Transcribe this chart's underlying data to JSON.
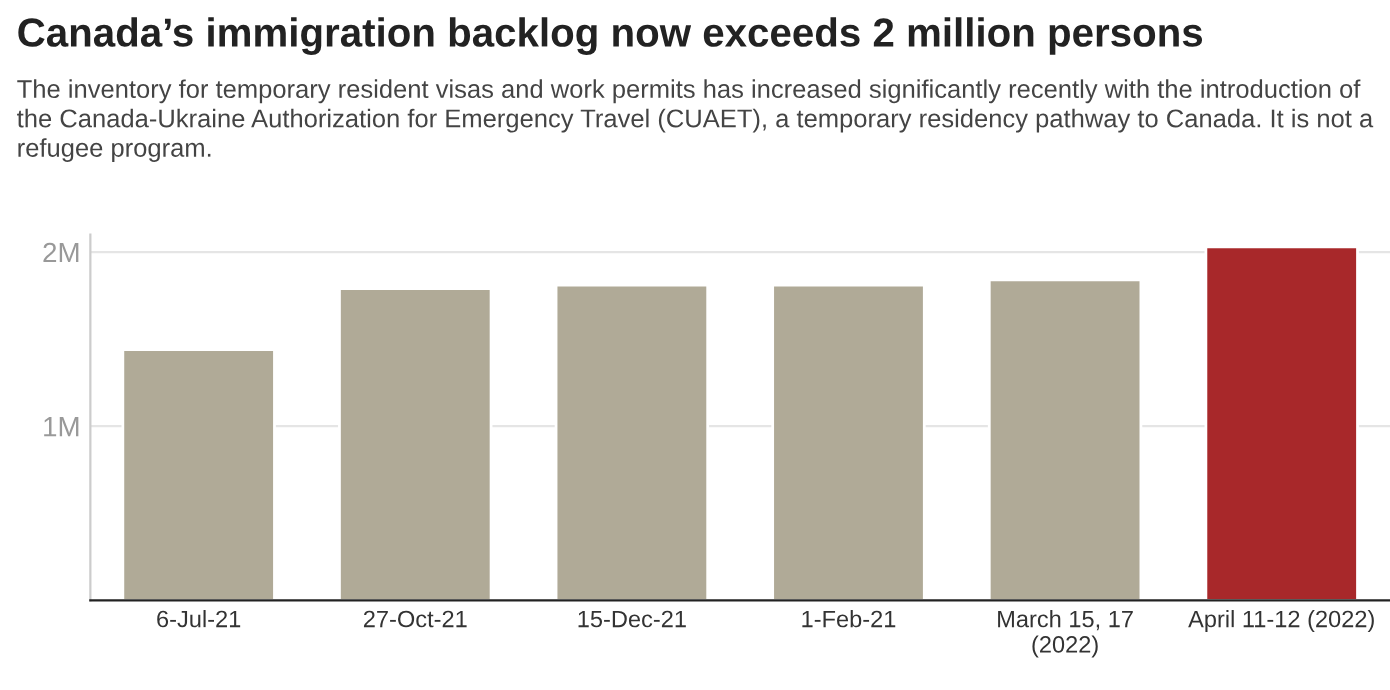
{
  "chart_data": {
    "type": "bar",
    "title": "Canada’s immigration backlog now exceeds 2 million persons",
    "subtitle": "The inventory for temporary resident visas and work permits has increased significantly recently with the introduction of the Canada-Ukraine Authorization for Emergency Travel (CUAET), a temporary residency pathway to Canada. It is not a refugee program.",
    "categories": [
      "6-Jul-21",
      "27-Oct-21",
      "15-Dec-21",
      "1-Feb-21",
      "March 15, 17\n(2022)",
      "April 11-12 (2022)"
    ],
    "values": [
      1440000,
      1790000,
      1810000,
      1810000,
      1840000,
      2030000
    ],
    "colors": [
      "#b0aa97",
      "#b0aa97",
      "#b0aa97",
      "#b0aa97",
      "#b0aa97",
      "#a8282a"
    ],
    "ylim": [
      0,
      2100000
    ],
    "yticks": [
      {
        "value": 1000000,
        "label": "1M"
      },
      {
        "value": 2000000,
        "label": "2M"
      }
    ],
    "grid": "y"
  }
}
